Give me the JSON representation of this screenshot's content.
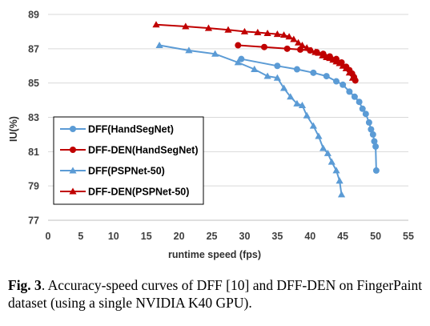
{
  "caption": {
    "label": "Fig. 3",
    "text": ". Accuracy-speed curves of DFF [10] and DFF-DEN on FingerPaint dataset (using a single NVIDIA K40 GPU)."
  },
  "chart_data": {
    "type": "line",
    "title": "",
    "xlabel": "runtime speed (fps)",
    "ylabel": "IU(%)",
    "xlim": [
      0,
      55
    ],
    "ylim": [
      77,
      89
    ],
    "xticks": [
      0,
      5,
      10,
      15,
      20,
      25,
      30,
      35,
      40,
      45,
      50,
      55
    ],
    "yticks": [
      77,
      79,
      81,
      83,
      85,
      87,
      89
    ],
    "grid": "horizontal",
    "legend_position": "bottom-left",
    "series": [
      {
        "name": "DFF(HandSegNet)",
        "color": "#5b9bd5",
        "marker": "circle",
        "points": [
          [
            29.5,
            86.4
          ],
          [
            35,
            86.0
          ],
          [
            38,
            85.8
          ],
          [
            40.5,
            85.6
          ],
          [
            42.5,
            85.4
          ],
          [
            44,
            85.1
          ],
          [
            45,
            84.9
          ],
          [
            46,
            84.5
          ],
          [
            46.8,
            84.2
          ],
          [
            47.5,
            83.9
          ],
          [
            48,
            83.5
          ],
          [
            48.5,
            83.2
          ],
          [
            49,
            82.7
          ],
          [
            49.3,
            82.3
          ],
          [
            49.6,
            82.0
          ],
          [
            49.8,
            81.6
          ],
          [
            50.0,
            81.3
          ],
          [
            50.1,
            79.9
          ]
        ]
      },
      {
        "name": "DFF-DEN(HandSegNet)",
        "color": "#c00000",
        "marker": "circle",
        "points": [
          [
            29,
            87.2
          ],
          [
            33,
            87.1
          ],
          [
            36.5,
            87.0
          ],
          [
            38.5,
            86.95
          ],
          [
            40,
            86.9
          ],
          [
            41,
            86.8
          ],
          [
            42,
            86.7
          ],
          [
            43,
            86.55
          ],
          [
            44,
            86.4
          ],
          [
            44.8,
            86.2
          ],
          [
            45.5,
            85.95
          ],
          [
            46,
            85.75
          ],
          [
            46.4,
            85.55
          ],
          [
            46.7,
            85.35
          ],
          [
            46.9,
            85.15
          ]
        ]
      },
      {
        "name": "DFF(PSPNet-50)",
        "color": "#5b9bd5",
        "marker": "triangle",
        "points": [
          [
            17,
            87.2
          ],
          [
            21.5,
            86.9
          ],
          [
            25.5,
            86.7
          ],
          [
            29,
            86.2
          ],
          [
            31.5,
            85.8
          ],
          [
            33.5,
            85.4
          ],
          [
            35,
            85.3
          ],
          [
            36,
            84.7
          ],
          [
            37,
            84.2
          ],
          [
            38,
            83.8
          ],
          [
            38.8,
            83.7
          ],
          [
            39.5,
            83.1
          ],
          [
            40.5,
            82.5
          ],
          [
            41.3,
            81.9
          ],
          [
            42,
            81.2
          ],
          [
            42.7,
            80.9
          ],
          [
            43.3,
            80.4
          ],
          [
            44,
            79.9
          ],
          [
            44.5,
            79.3
          ],
          [
            44.8,
            78.5
          ]
        ]
      },
      {
        "name": "DFF-DEN(PSPNet-50)",
        "color": "#c00000",
        "marker": "triangle",
        "points": [
          [
            16.5,
            88.4
          ],
          [
            21,
            88.3
          ],
          [
            24.5,
            88.2
          ],
          [
            27.5,
            88.1
          ],
          [
            30,
            88.0
          ],
          [
            32,
            87.95
          ],
          [
            33.5,
            87.9
          ],
          [
            35,
            87.85
          ],
          [
            36,
            87.8
          ],
          [
            36.8,
            87.7
          ],
          [
            37.5,
            87.55
          ],
          [
            38.2,
            87.35
          ],
          [
            38.8,
            87.2
          ],
          [
            39.5,
            87.05
          ],
          [
            40.2,
            86.9
          ],
          [
            40.8,
            86.8
          ],
          [
            41.3,
            86.75
          ],
          [
            41.9,
            86.6
          ],
          [
            42.5,
            86.5
          ],
          [
            43.0,
            86.45
          ],
          [
            43.5,
            86.35
          ],
          [
            44,
            86.25
          ],
          [
            44.5,
            86.15
          ],
          [
            45,
            86.0
          ],
          [
            45.5,
            85.85
          ],
          [
            46,
            85.6
          ],
          [
            46.5,
            85.3
          ]
        ]
      }
    ]
  }
}
